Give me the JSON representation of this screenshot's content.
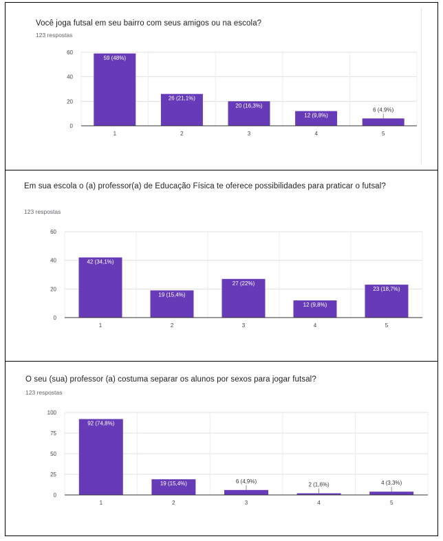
{
  "colors": {
    "bar": "#673ab7",
    "grid": "#e0e0e0",
    "axis": "#333333",
    "label_inside": "#ffffff",
    "label_outside": "#333333"
  },
  "questions": [
    {
      "title": "Você joga futsal em seu bairro com seus amigos ou na escola?",
      "responses": "123 respostas"
    },
    {
      "title": "Em sua escola o (a) professor(a) de Educação Física te oferece possibilidades para praticar o futsal?",
      "responses": "123 respostas"
    },
    {
      "title": "O seu (sua) professor (a) costuma separar os alunos por sexos para jogar futsal?",
      "responses": "123 respostas"
    }
  ],
  "chart_data": [
    {
      "type": "bar",
      "title": "Você joga futsal em seu bairro com seus amigos ou na escola?",
      "categories": [
        "1",
        "2",
        "3",
        "4",
        "5"
      ],
      "values": [
        59,
        26,
        20,
        12,
        6
      ],
      "labels": [
        "59 (48%)",
        "26 (21,1%)",
        "20 (16,3%)",
        "12 (9,8%)",
        "6 (4,9%)"
      ],
      "yticks": [
        0,
        20,
        40,
        60
      ],
      "ylim": [
        0,
        60
      ],
      "grid": true
    },
    {
      "type": "bar",
      "title": "Em sua escola o (a) professor(a) de Educação Física te oferece possibilidades para praticar o futsal?",
      "categories": [
        "1",
        "2",
        "3",
        "4",
        "5"
      ],
      "values": [
        42,
        19,
        27,
        12,
        23
      ],
      "labels": [
        "42 (34,1%)",
        "19 (15,4%)",
        "27 (22%)",
        "12 (9,8%)",
        "23 (18,7%)"
      ],
      "yticks": [
        0,
        20,
        40,
        60
      ],
      "ylim": [
        0,
        60
      ],
      "grid": true
    },
    {
      "type": "bar",
      "title": "O seu (sua) professor (a) costuma separar os alunos por sexos para jogar futsal?",
      "categories": [
        "1",
        "2",
        "3",
        "4",
        "5"
      ],
      "values": [
        92,
        19,
        6,
        2,
        4
      ],
      "labels": [
        "92 (74,8%)",
        "19 (15,4%)",
        "6 (4,9%)",
        "2 (1,6%)",
        "4 (3,3%)"
      ],
      "yticks": [
        0,
        25,
        50,
        75,
        100
      ],
      "ylim": [
        0,
        100
      ],
      "grid": true
    }
  ]
}
